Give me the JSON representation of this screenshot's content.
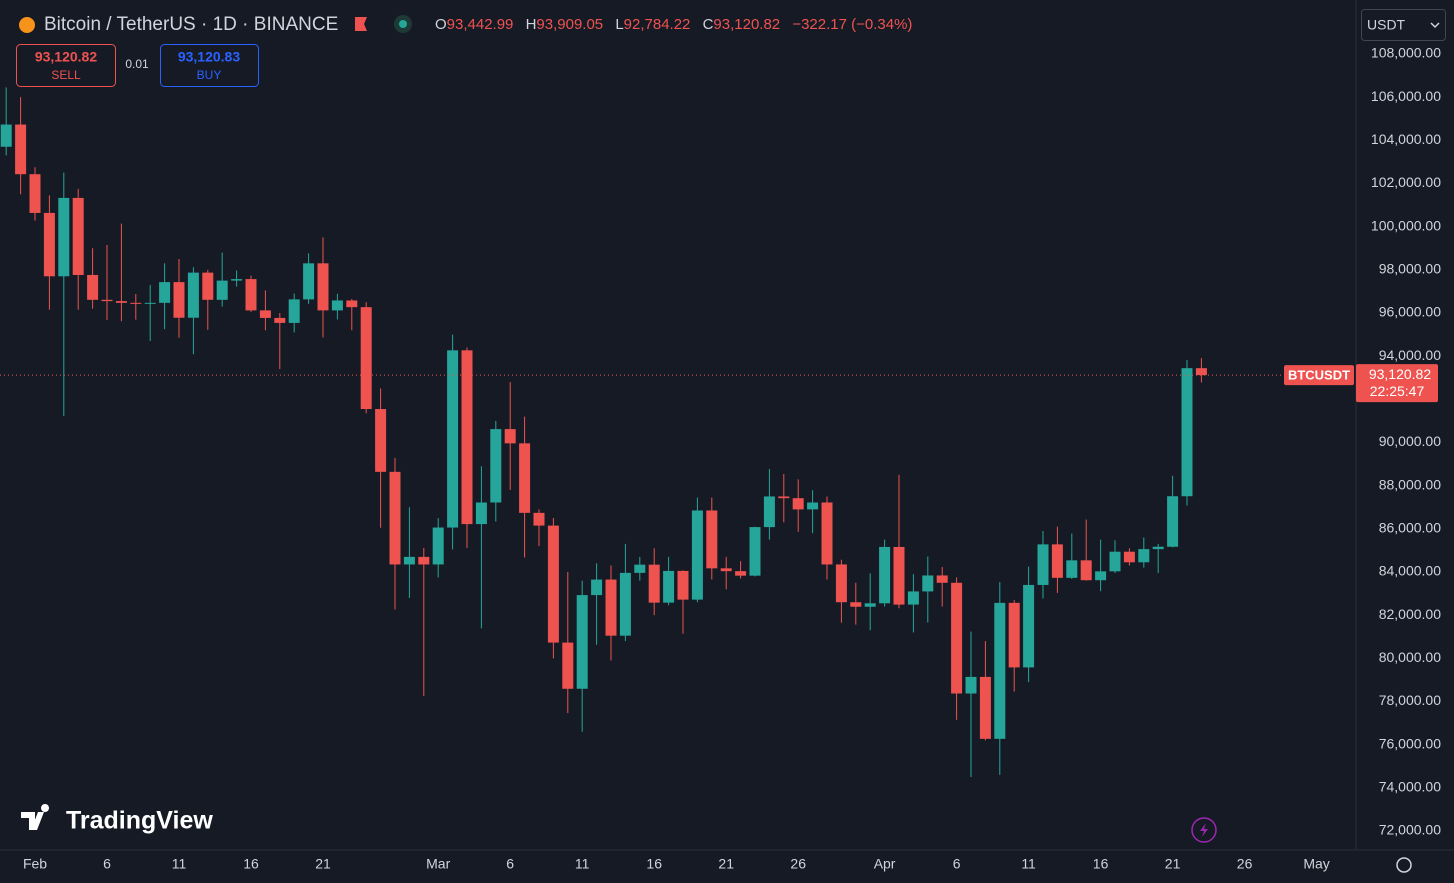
{
  "header": {
    "title": "Bitcoin / TetherUS · 1D · BINANCE",
    "ohlc": [
      {
        "label": "O",
        "value": "93,442.99"
      },
      {
        "label": "H",
        "value": "93,909.05"
      },
      {
        "label": "L",
        "value": "92,784.22"
      },
      {
        "label": "C",
        "value": "93,120.82"
      }
    ],
    "change": "−322.17 (−0.34%)"
  },
  "trade": {
    "sell_price": "93,120.82",
    "sell": "SELL",
    "spread": "0.01",
    "buy_price": "93,120.83",
    "buy": "BUY"
  },
  "currency": "USDT",
  "price_label": {
    "symbol": "BTCUSDT",
    "price": "93,120.82",
    "countdown": "22:25:47"
  },
  "logo": "TradingView",
  "chart_data": {
    "type": "candlestick",
    "up_color": "#26a69a",
    "down_color": "#ef5350",
    "grid": true,
    "x": [
      "Jan 30",
      "Jan 31",
      "Feb 1",
      "Feb 2",
      "Feb 3",
      "Feb 4",
      "Feb 5",
      "Feb 6",
      "Feb 7",
      "Feb 8",
      "Feb 9",
      "Feb 10",
      "Feb 11",
      "Feb 12",
      "Feb 13",
      "Feb 14",
      "Feb 15",
      "Feb 16",
      "Feb 17",
      "Feb 18",
      "Feb 19",
      "Feb 20",
      "Feb 21",
      "Feb 22",
      "Feb 23",
      "Feb 24",
      "Feb 25",
      "Feb 26",
      "Feb 27",
      "Feb 28",
      "Mar 1",
      "Mar 2",
      "Mar 3",
      "Mar 4",
      "Mar 5",
      "Mar 6",
      "Mar 7",
      "Mar 8",
      "Mar 9",
      "Mar 10",
      "Mar 11",
      "Mar 12",
      "Mar 13",
      "Mar 14",
      "Mar 15",
      "Mar 16",
      "Mar 17",
      "Mar 18",
      "Mar 19",
      "Mar 20",
      "Mar 21",
      "Mar 22",
      "Mar 23",
      "Mar 24",
      "Mar 25",
      "Mar 26",
      "Mar 27",
      "Mar 28",
      "Mar 29",
      "Mar 30",
      "Mar 31",
      "Apr 1",
      "Apr 2",
      "Apr 3",
      "Apr 4",
      "Apr 5",
      "Apr 6",
      "Apr 7",
      "Apr 8",
      "Apr 9",
      "Apr 10",
      "Apr 11",
      "Apr 12",
      "Apr 13",
      "Apr 14",
      "Apr 15",
      "Apr 16",
      "Apr 17",
      "Apr 18",
      "Apr 19",
      "Apr 20",
      "Apr 21",
      "Apr 22",
      "Apr 23"
    ],
    "open": [
      103700,
      104730,
      102430,
      100635,
      97700,
      101330,
      97760,
      96610,
      96550,
      96470,
      96460,
      96470,
      97430,
      95780,
      97870,
      96610,
      97500,
      97570,
      96120,
      95770,
      95540,
      96630,
      98300,
      96120,
      96580,
      96270,
      91550,
      88640,
      84350,
      84700,
      84350,
      86060,
      94270,
      86220,
      87220,
      90620,
      89960,
      86740,
      86150,
      80730,
      78590,
      82930,
      83650,
      81050,
      83960,
      84340,
      82580,
      84050,
      82720,
      86850,
      84170,
      84040,
      83830,
      86080,
      87500,
      87420,
      86900,
      87220,
      84350,
      82600,
      82390,
      82550,
      85160,
      82490,
      83100,
      83840,
      83500,
      78370,
      79140,
      76270,
      82570,
      79580,
      83400,
      85280,
      83730,
      84540,
      83620,
      84030,
      84940,
      84450,
      85060,
      85170,
      87510,
      93442.99
    ],
    "high": [
      106450,
      106000,
      102750,
      101450,
      102500,
      101750,
      99000,
      99150,
      100140,
      96880,
      97300,
      98300,
      98500,
      98120,
      98000,
      98800,
      97970,
      97730,
      97050,
      96000,
      96900,
      98760,
      99500,
      96890,
      96650,
      96500,
      92500,
      89290,
      87000,
      85120,
      86500,
      95000,
      94400,
      88900,
      91000,
      92800,
      91200,
      86900,
      86500,
      84000,
      83600,
      84400,
      84300,
      85300,
      84700,
      85100,
      84700,
      84080,
      87450,
      87450,
      84700,
      84500,
      86100,
      88770,
      88540,
      88290,
      87790,
      87500,
      84570,
      83500,
      83940,
      85500,
      88500,
      83900,
      84720,
      84230,
      83750,
      81240,
      80800,
      83530,
      82700,
      84250,
      85900,
      86100,
      85780,
      86430,
      85500,
      85470,
      85100,
      85600,
      85300,
      88460,
      93820,
      93909.05
    ],
    "low": [
      103300,
      101500,
      100280,
      96150,
      91230,
      96150,
      96200,
      95680,
      95620,
      95690,
      94700,
      95250,
      94850,
      94090,
      95220,
      96300,
      97220,
      96050,
      95200,
      93400,
      95100,
      96420,
      94870,
      95700,
      95200,
      91350,
      86050,
      82260,
      82800,
      78260,
      83750,
      85040,
      85120,
      81390,
      86340,
      87800,
      84670,
      85200,
      80000,
      77460,
      76600,
      80630,
      79900,
      80800,
      83600,
      82000,
      82460,
      81140,
      82600,
      83650,
      83200,
      83700,
      83800,
      85500,
      86300,
      85860,
      85800,
      83650,
      81650,
      81560,
      81300,
      82400,
      82320,
      81200,
      81660,
      82400,
      77150,
      74500,
      76200,
      74600,
      78460,
      78900,
      82770,
      83030,
      83680,
      83600,
      83110,
      83950,
      84300,
      84200,
      83950,
      85140,
      87080,
      92784.22
    ],
    "close": [
      104730,
      102430,
      100635,
      97700,
      101330,
      97760,
      96610,
      96550,
      96470,
      96460,
      96470,
      97430,
      95780,
      97870,
      96610,
      97500,
      97570,
      96120,
      95770,
      95540,
      96630,
      98300,
      96120,
      96580,
      96270,
      91550,
      88640,
      84350,
      84700,
      84350,
      86060,
      94270,
      86220,
      87220,
      90620,
      89960,
      86740,
      86150,
      80730,
      78590,
      82930,
      83650,
      81050,
      83960,
      84340,
      82580,
      84050,
      82720,
      86850,
      84170,
      84040,
      83830,
      86080,
      87500,
      87420,
      86900,
      87220,
      84350,
      82600,
      82390,
      82550,
      85160,
      82490,
      83100,
      83840,
      83500,
      78370,
      79140,
      76270,
      82570,
      79580,
      83400,
      85280,
      83730,
      84540,
      83620,
      84030,
      84940,
      84450,
      85060,
      85170,
      87510,
      93442.99,
      93120.82
    ],
    "ylim": [
      71000,
      110500
    ],
    "yticks": [
      {
        "value": 72000,
        "label": "72,000.00"
      },
      {
        "value": 74000,
        "label": "74,000.00"
      },
      {
        "value": 76000,
        "label": "76,000.00"
      },
      {
        "value": 78000,
        "label": "78,000.00"
      },
      {
        "value": 80000,
        "label": "80,000.00"
      },
      {
        "value": 82000,
        "label": "82,000.00"
      },
      {
        "value": 84000,
        "label": "84,000.00"
      },
      {
        "value": 86000,
        "label": "86,000.00"
      },
      {
        "value": 88000,
        "label": "88,000.00"
      },
      {
        "value": 90000,
        "label": "90,000.00"
      },
      {
        "value": 94000,
        "label": "94,000.00"
      },
      {
        "value": 96000,
        "label": "96,000.00"
      },
      {
        "value": 98000,
        "label": "98,000.00"
      },
      {
        "value": 100000,
        "label": "100,000.00"
      },
      {
        "value": 102000,
        "label": "102,000.00"
      },
      {
        "value": 104000,
        "label": "104,000.00"
      },
      {
        "value": 106000,
        "label": "106,000.00"
      },
      {
        "value": 108000,
        "label": "108,000.00"
      }
    ],
    "xticks": [
      {
        "value": "Feb 1",
        "label": "Feb"
      },
      {
        "value": "Feb 6",
        "label": "6"
      },
      {
        "value": "Feb 11",
        "label": "11"
      },
      {
        "value": "Feb 16",
        "label": "16"
      },
      {
        "value": "Feb 21",
        "label": "21"
      },
      {
        "value": "Mar 1",
        "label": "Mar"
      },
      {
        "value": "Mar 6",
        "label": "6"
      },
      {
        "value": "Mar 11",
        "label": "11"
      },
      {
        "value": "Mar 16",
        "label": "16"
      },
      {
        "value": "Mar 21",
        "label": "21"
      },
      {
        "value": "Mar 26",
        "label": "26"
      },
      {
        "value": "Apr 1",
        "label": "Apr"
      },
      {
        "value": "Apr 6",
        "label": "6"
      },
      {
        "value": "Apr 11",
        "label": "11"
      },
      {
        "value": "Apr 16",
        "label": "16"
      },
      {
        "value": "Apr 21",
        "label": "21"
      },
      {
        "value": "Apr 26",
        "label": "26"
      },
      {
        "value": "May 1",
        "label": "May"
      }
    ]
  }
}
